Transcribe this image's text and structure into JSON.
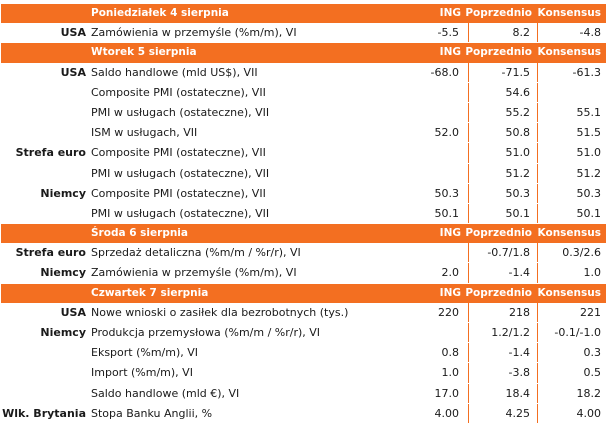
{
  "columns": {
    "ing": "ING",
    "prev": "Poprzednio",
    "cons": "Konsensus"
  },
  "sections": [
    {
      "day": "Poniedziałek 4 sierpnia",
      "rows": [
        {
          "country": "USA",
          "indicator": "Zamówienia w przemyśle (%m/m), VI",
          "ing": "-5.5",
          "prev": "8.2",
          "cons": "-4.8"
        }
      ]
    },
    {
      "day": "Wtorek 5 sierpnia",
      "rows": [
        {
          "country": "USA",
          "indicator": "Saldo handlowe (mld US$), VII",
          "ing": "-68.0",
          "prev": "-71.5",
          "cons": "-61.3"
        },
        {
          "country": "",
          "indicator": "Composite PMI (ostateczne), VII",
          "ing": "",
          "prev": "54.6",
          "cons": ""
        },
        {
          "country": "",
          "indicator": "PMI w usługach (ostateczne), VII",
          "ing": "",
          "prev": "55.2",
          "cons": "55.1"
        },
        {
          "country": "",
          "indicator": "ISM w usługach, VII",
          "ing": "52.0",
          "prev": "50.8",
          "cons": "51.5"
        },
        {
          "country": "Strefa euro",
          "indicator": "Composite PMI (ostateczne), VII",
          "ing": "",
          "prev": "51.0",
          "cons": "51.0"
        },
        {
          "country": "",
          "indicator": "PMI w usługach (ostateczne), VII",
          "ing": "",
          "prev": "51.2",
          "cons": "51.2"
        },
        {
          "country": "Niemcy",
          "indicator": "Composite PMI (ostateczne), VII",
          "ing": "50.3",
          "prev": "50.3",
          "cons": "50.3"
        },
        {
          "country": "",
          "indicator": "PMI w usługach (ostateczne), VII",
          "ing": "50.1",
          "prev": "50.1",
          "cons": "50.1"
        }
      ]
    },
    {
      "day": "Środa 6 sierpnia",
      "rows": [
        {
          "country": "Strefa euro",
          "indicator": "Sprzedaż detaliczna (%m/m / %r/r), VI",
          "ing": "",
          "prev": "-0.7/1.8",
          "cons": "0.3/2.6"
        },
        {
          "country": "Niemcy",
          "indicator": "Zamówienia w przemyśle (%m/m), VI",
          "ing": "2.0",
          "prev": "-1.4",
          "cons": "1.0"
        }
      ]
    },
    {
      "day": "Czwartek 7 sierpnia",
      "rows": [
        {
          "country": "USA",
          "indicator": "Nowe wnioski o zasiłek dla bezrobotnych (tys.)",
          "ing": "220",
          "prev": "218",
          "cons": "221"
        },
        {
          "country": "Niemcy",
          "indicator": "Produkcja przemysłowa (%m/m / %r/r), VI",
          "ing": "",
          "prev": "1.2/1.2",
          "cons": "-0.1/-1.0"
        },
        {
          "country": "",
          "indicator": "Eksport (%m/m), VI",
          "ing": "0.8",
          "prev": "-1.4",
          "cons": "0.3"
        },
        {
          "country": "",
          "indicator": "Import (%m/m), VI",
          "ing": "1.0",
          "prev": "-3.8",
          "cons": "0.5"
        },
        {
          "country": "",
          "indicator": "Saldo handlowe (mld €), VI",
          "ing": "17.0",
          "prev": "18.4",
          "cons": "18.2"
        },
        {
          "country": "Wlk. Brytania",
          "indicator": "Stopa Banku Anglii, %",
          "ing": "4.00",
          "prev": "4.25",
          "cons": "4.00"
        }
      ]
    }
  ],
  "colors": {
    "accent": "#f36f21",
    "text": "#1a1a1a",
    "header_text": "#ffffff"
  }
}
